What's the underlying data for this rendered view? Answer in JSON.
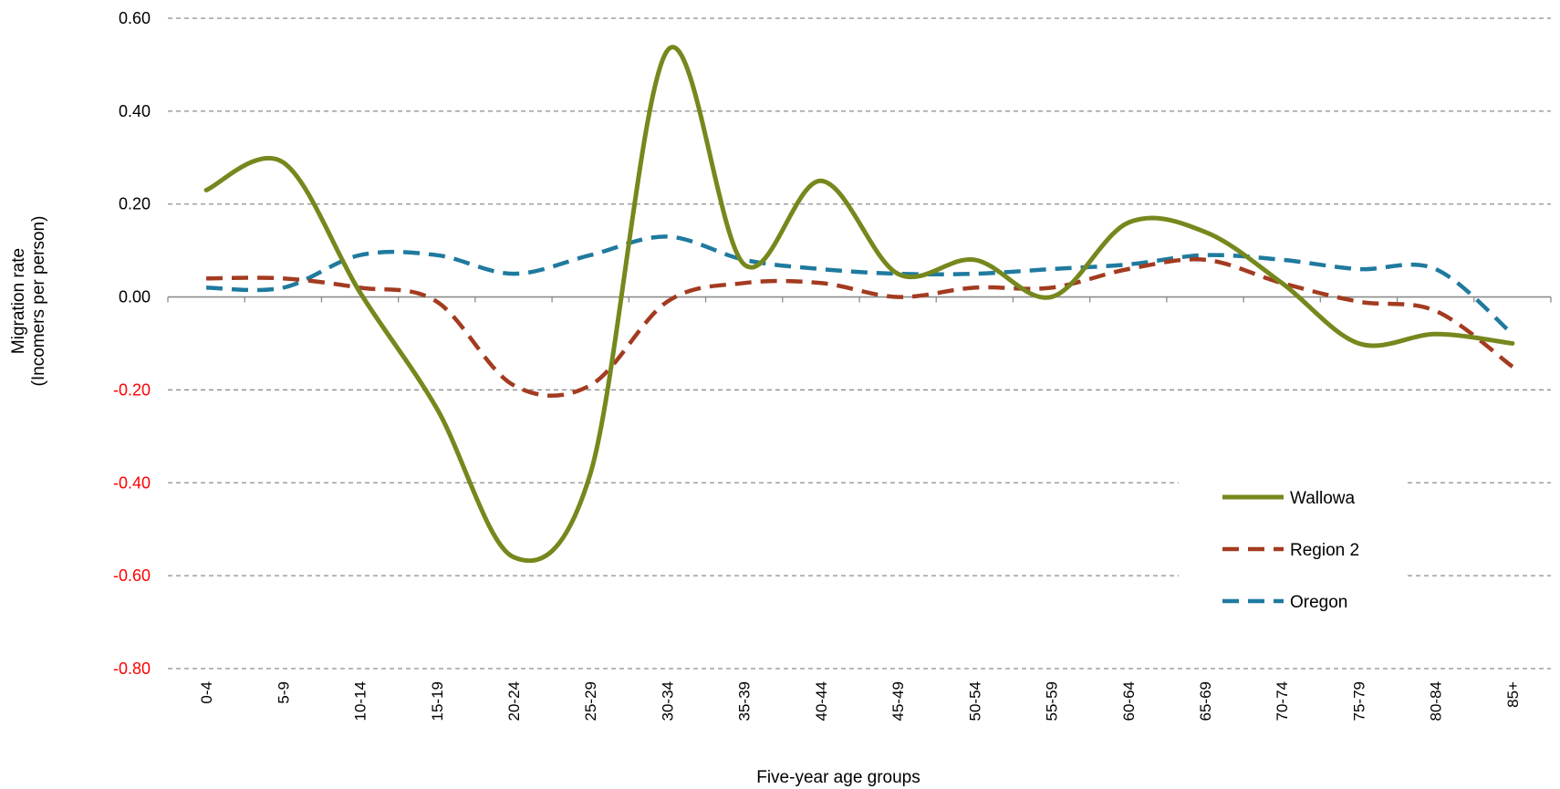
{
  "chart_data": {
    "type": "line",
    "title": "",
    "xlabel": "Five-year age groups",
    "ylabel_lines": [
      "Migration rate",
      "(Incomers per person)"
    ],
    "ylim": [
      -0.8,
      0.6
    ],
    "yticks": [
      0.6,
      0.4,
      0.2,
      0.0,
      -0.2,
      -0.4,
      -0.6,
      -0.8
    ],
    "ytick_labels": [
      "0.60",
      "0.40",
      "0.20",
      "0.00",
      "-0.20",
      "-0.40",
      "-0.60",
      "-0.80"
    ],
    "negative_tick_color": "#ff0000",
    "positive_tick_color": "#000000",
    "grid": true,
    "legend_position": "bottom-right",
    "categories": [
      "0-4",
      "5-9",
      "10-14",
      "15-19",
      "20-24",
      "25-29",
      "30-34",
      "35-39",
      "40-44",
      "45-49",
      "50-54",
      "55-59",
      "60-64",
      "65-69",
      "70-74",
      "75-79",
      "80-84",
      "85+"
    ],
    "series": [
      {
        "name": "Wallowa",
        "color": "#76881d",
        "dash": "solid",
        "values": [
          0.23,
          0.29,
          0.01,
          -0.24,
          -0.56,
          -0.38,
          0.53,
          0.07,
          0.25,
          0.05,
          0.08,
          0.0,
          0.16,
          0.14,
          0.03,
          -0.1,
          -0.08,
          -0.1
        ]
      },
      {
        "name": "Region 2",
        "color": "#a33b20",
        "dash": "dashed",
        "values": [
          0.04,
          0.04,
          0.02,
          -0.01,
          -0.19,
          -0.19,
          -0.01,
          0.03,
          0.03,
          0.0,
          0.02,
          0.02,
          0.06,
          0.08,
          0.03,
          -0.01,
          -0.03,
          -0.15
        ]
      },
      {
        "name": "Oregon",
        "color": "#1f7a9e",
        "dash": "dashed",
        "values": [
          0.02,
          0.02,
          0.09,
          0.09,
          0.05,
          0.09,
          0.13,
          0.08,
          0.06,
          0.05,
          0.05,
          0.06,
          0.07,
          0.09,
          0.08,
          0.06,
          0.06,
          -0.08
        ]
      }
    ]
  }
}
